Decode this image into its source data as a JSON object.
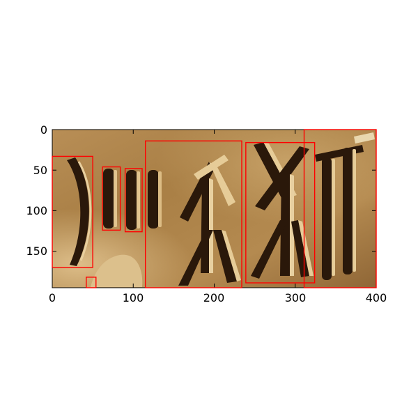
{
  "axes": {
    "x_ticks": [
      "0",
      "100",
      "200",
      "300",
      "400"
    ],
    "y_ticks": [
      "0",
      "50",
      "100",
      "150"
    ],
    "xlim": [
      0,
      400
    ],
    "ylim": [
      195,
      0
    ]
  },
  "image": {
    "subject": "carved stone relief with incised ancient script glyphs",
    "palette": {
      "stone_light": "#c9a36a",
      "stone_mid": "#a97f45",
      "stone_dark": "#6e4a22",
      "groove_shadow": "#2a180a"
    }
  },
  "detections": {
    "box_color": "#ff0000",
    "boxes": [
      {
        "x0": 0,
        "y0": 33,
        "x1": 50,
        "y1": 170
      },
      {
        "x0": 62,
        "y0": 46,
        "x1": 84,
        "y1": 124
      },
      {
        "x0": 90,
        "y0": 48,
        "x1": 111,
        "y1": 126
      },
      {
        "x0": 115,
        "y0": 14,
        "x1": 234,
        "y1": 195
      },
      {
        "x0": 239,
        "y0": 16,
        "x1": 324,
        "y1": 189
      },
      {
        "x0": 311,
        "y0": 0,
        "x1": 400,
        "y1": 195
      },
      {
        "x0": 42,
        "y0": 182,
        "x1": 54,
        "y1": 195
      }
    ]
  }
}
